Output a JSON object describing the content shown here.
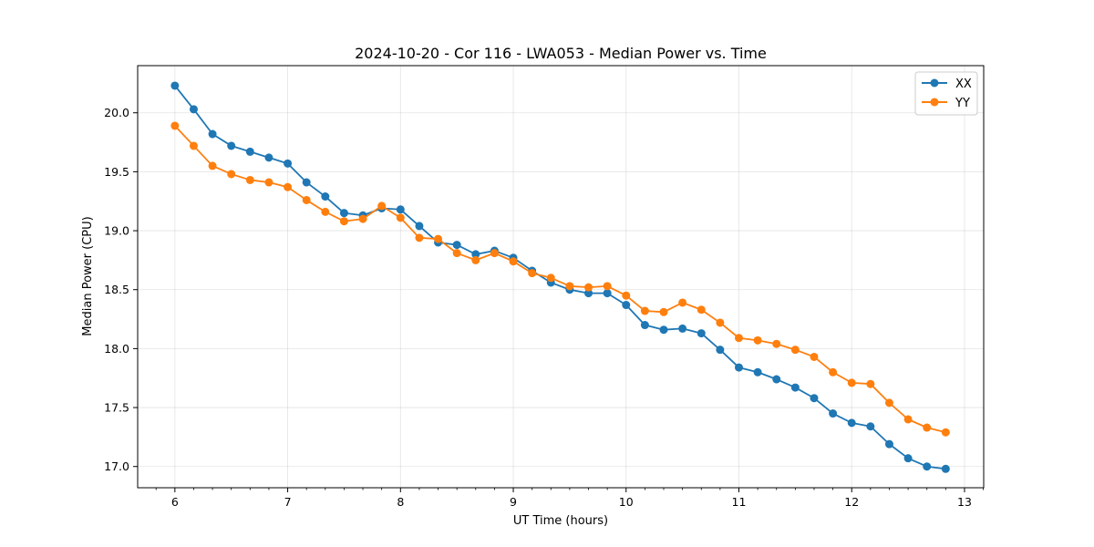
{
  "chart_data": {
    "type": "line",
    "title": "2024-10-20 - Cor 116 - LWA053 - Median Power vs. Time",
    "xlabel": "UT Time (hours)",
    "ylabel": "Median Power (CPU)",
    "xlim": [
      5.67,
      13.17
    ],
    "ylim": [
      16.82,
      20.4
    ],
    "xticks": [
      6,
      7,
      8,
      9,
      10,
      11,
      12,
      13
    ],
    "xtick_labels": [
      "6",
      "7",
      "8",
      "9",
      "10",
      "11",
      "12",
      "13"
    ],
    "yticks": [
      17.0,
      17.5,
      18.0,
      18.5,
      19.0,
      19.5,
      20.0
    ],
    "ytick_labels": [
      "17.0",
      "17.5",
      "18.0",
      "18.5",
      "19.0",
      "19.5",
      "20.0"
    ],
    "grid": true,
    "legend_position": "top-right",
    "x": [
      6.0,
      6.1667,
      6.3333,
      6.5,
      6.6667,
      6.8333,
      7.0,
      7.1667,
      7.3333,
      7.5,
      7.6667,
      7.8333,
      8.0,
      8.1667,
      8.3333,
      8.5,
      8.6667,
      8.8333,
      9.0,
      9.1667,
      9.3333,
      9.5,
      9.6667,
      9.8333,
      10.0,
      10.1667,
      10.3333,
      10.5,
      10.6667,
      10.8333,
      11.0,
      11.1667,
      11.3333,
      11.5,
      11.6667,
      11.8333,
      12.0,
      12.1667,
      12.3333,
      12.5,
      12.6667,
      12.8333
    ],
    "series": [
      {
        "name": "XX",
        "color": "#1f77b4",
        "values": [
          20.23,
          20.03,
          19.82,
          19.72,
          19.67,
          19.62,
          19.57,
          19.41,
          19.29,
          19.15,
          19.13,
          19.19,
          19.18,
          19.04,
          18.9,
          18.88,
          18.8,
          18.83,
          18.77,
          18.66,
          18.56,
          18.5,
          18.47,
          18.47,
          18.37,
          18.2,
          18.16,
          18.17,
          18.13,
          17.99,
          17.84,
          17.8,
          17.74,
          17.67,
          17.58,
          17.45,
          17.37,
          17.34,
          17.19,
          17.07,
          17.0,
          16.98
        ]
      },
      {
        "name": "YY",
        "color": "#ff7f0e",
        "values": [
          19.89,
          19.72,
          19.55,
          19.48,
          19.43,
          19.41,
          19.37,
          19.26,
          19.16,
          19.08,
          19.1,
          19.21,
          19.11,
          18.94,
          18.93,
          18.81,
          18.75,
          18.81,
          18.74,
          18.64,
          18.6,
          18.53,
          18.52,
          18.53,
          18.45,
          18.32,
          18.31,
          18.39,
          18.33,
          18.22,
          18.09,
          18.07,
          18.04,
          17.99,
          17.93,
          17.8,
          17.71,
          17.7,
          17.54,
          17.4,
          17.33,
          17.29
        ]
      }
    ]
  }
}
